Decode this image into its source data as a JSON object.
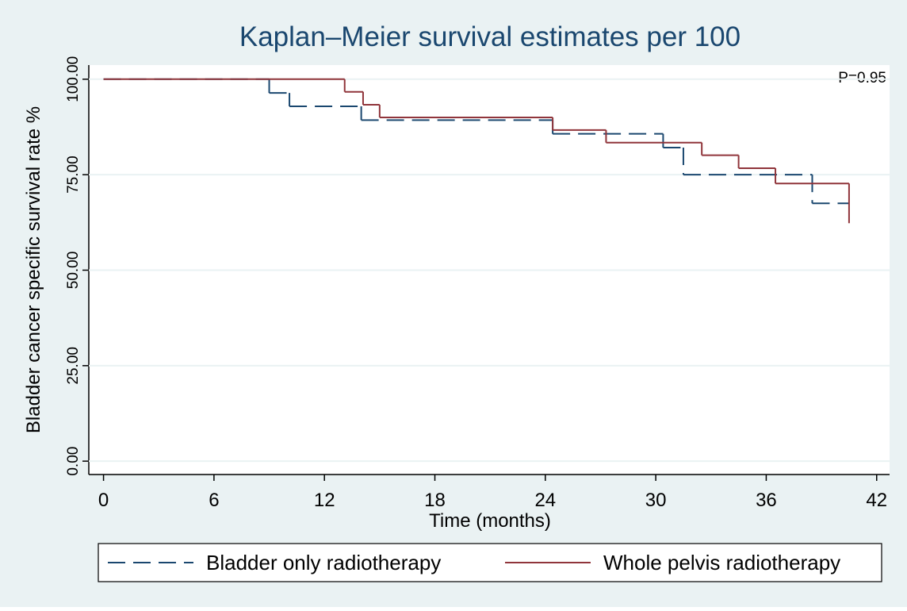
{
  "chart_data": {
    "type": "step",
    "title": "Kaplan–Meier survival estimates per 100",
    "annotation": "P=0.95",
    "x_label": "Time (months)",
    "y_label": "Bladder cancer specific survival rate %",
    "xlim": [
      -0.8,
      42.7
    ],
    "ylim": [
      -3.5,
      103.7
    ],
    "xticks": [
      0,
      6,
      12,
      18,
      24,
      30,
      36,
      42
    ],
    "yticks": [
      {
        "value": 0,
        "label": "0.00"
      },
      {
        "value": 25,
        "label": "25.00"
      },
      {
        "value": 50,
        "label": "50.00"
      },
      {
        "value": 75,
        "label": "75.00"
      },
      {
        "value": 100,
        "label": "100.00"
      }
    ],
    "grid": true,
    "legend": "bottom",
    "series": [
      {
        "name": "Bladder only radiotherapy",
        "color": "#1a476f",
        "dash": true,
        "x": [
          0,
          9,
          10.1,
          14,
          24.4,
          30.4,
          31.5,
          38.5,
          40.5
        ],
        "values": [
          100,
          96.4,
          92.9,
          89.3,
          85.7,
          82.1,
          75,
          67.5,
          67.5
        ]
      },
      {
        "name": "Whole pelvis radiotherapy",
        "color": "#90353b",
        "dash": false,
        "x": [
          0,
          13.1,
          14.1,
          15,
          24.4,
          27.3,
          32.5,
          34.5,
          36.5,
          40.5
        ],
        "values": [
          100,
          96.7,
          93.3,
          90,
          86.7,
          83.4,
          80.1,
          76.7,
          72.7,
          62.3
        ]
      }
    ]
  }
}
